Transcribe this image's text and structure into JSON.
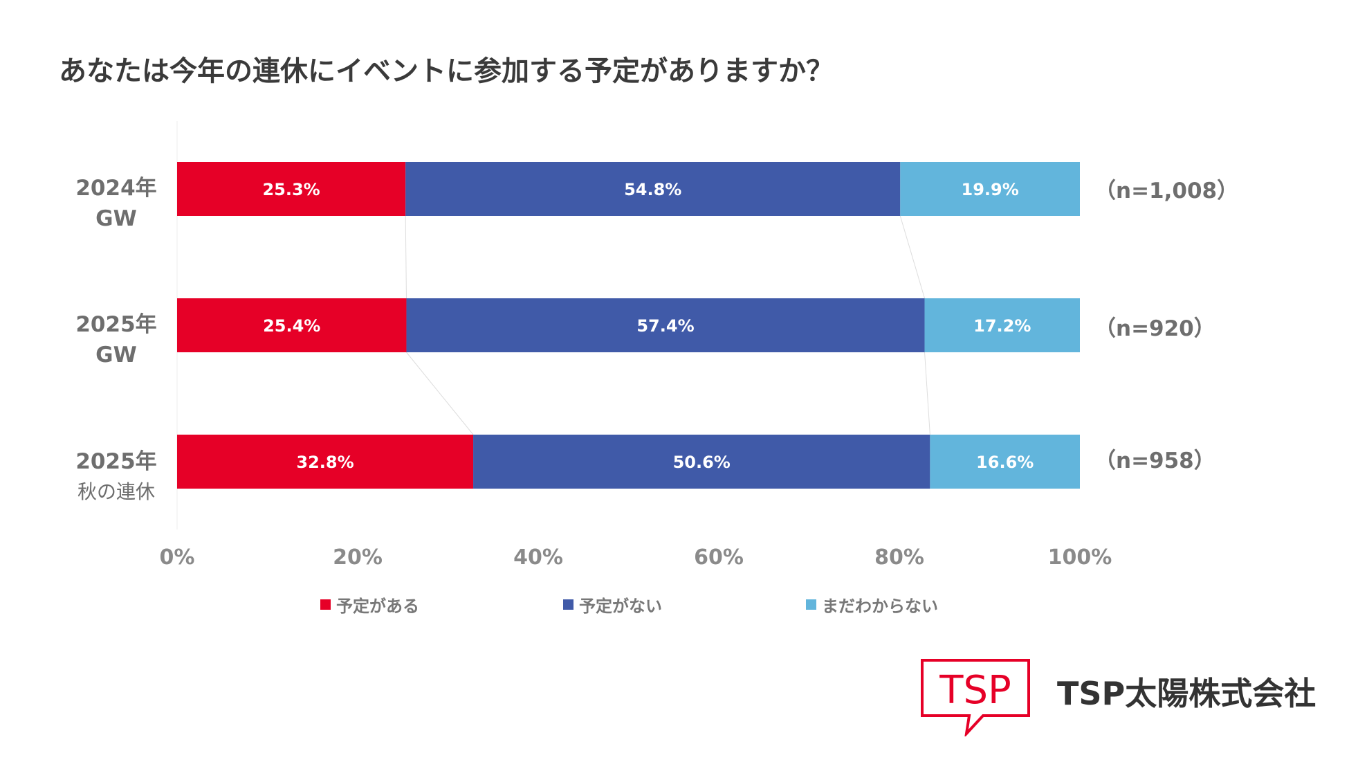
{
  "title": "あなたは今年の連休にイベントに参加する予定がありますか？",
  "chart_data": {
    "type": "bar",
    "orientation": "horizontal",
    "stacked": true,
    "title": "あなたは今年の連休にイベントに参加する予定がありますか？",
    "categories": [
      [
        "2024年",
        "GW"
      ],
      [
        "2025年",
        "GW"
      ],
      [
        "2025年",
        "秋の連休"
      ]
    ],
    "sample_sizes": [
      "（n=1,008）",
      "（n=920）",
      "（n=958）"
    ],
    "series": [
      {
        "name": "予定がある",
        "color": "#e60027",
        "values": [
          25.3,
          25.4,
          32.8
        ]
      },
      {
        "name": "予定がない",
        "color": "#405aa8",
        "values": [
          54.8,
          57.4,
          50.6
        ]
      },
      {
        "name": "まだわからない",
        "color": "#62b5dc",
        "values": [
          19.9,
          17.2,
          16.6
        ]
      }
    ],
    "xlim": [
      0,
      100
    ],
    "xticks": [
      "0%",
      "20%",
      "40%",
      "60%",
      "80%",
      "100%"
    ],
    "legend": "bottom",
    "grid": false
  },
  "logo": {
    "mark": "TSP",
    "company": "TSP太陽株式会社",
    "color": "#e60027"
  }
}
